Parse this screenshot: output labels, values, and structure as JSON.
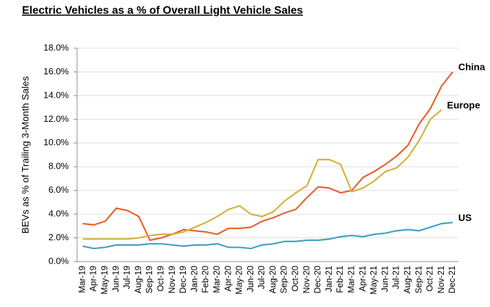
{
  "chart_data": {
    "type": "line",
    "title": "Electric Vehicles as a % of Overall Light Vehicle Sales",
    "y_label": "BEVs as % of Trailing 3-Month Sales",
    "categories": [
      "Mar-19",
      "Apr-19",
      "May-19",
      "Jun-19",
      "Jul-19",
      "Aug-19",
      "Sep-19",
      "Oct-19",
      "Nov-19",
      "Dec-19",
      "Jan-20",
      "Feb-20",
      "Mar-20",
      "Apr-20",
      "May-20",
      "Jun-20",
      "Jul-20",
      "Aug-20",
      "Sep-20",
      "Oct-20",
      "Nov-20",
      "Dec-20",
      "Jan-21",
      "Feb-21",
      "Mar-21",
      "Apr-21",
      "May-21",
      "Jun-21",
      "Jul-21",
      "Aug-21",
      "Sep-21",
      "Oct-21",
      "Nov-21",
      "Dec-21"
    ],
    "series": [
      {
        "name": "China",
        "color": "#e8602a",
        "values": [
          3.2,
          3.1,
          3.4,
          4.5,
          4.3,
          3.8,
          1.8,
          2.0,
          2.3,
          2.7,
          2.6,
          2.5,
          2.3,
          2.8,
          2.8,
          2.9,
          3.4,
          3.7,
          4.1,
          4.4,
          5.4,
          6.3,
          6.2,
          5.8,
          6.0,
          7.1,
          7.6,
          8.2,
          8.9,
          9.8,
          11.6,
          12.9,
          14.8,
          16.0
        ]
      },
      {
        "name": "Europe",
        "color": "#d4b13c",
        "values": [
          1.9,
          1.9,
          1.9,
          1.9,
          1.9,
          2.0,
          2.2,
          2.3,
          2.3,
          2.5,
          2.9,
          3.3,
          3.8,
          4.4,
          4.7,
          4.0,
          3.8,
          4.2,
          5.1,
          5.8,
          6.4,
          8.6,
          8.6,
          8.2,
          5.9,
          6.2,
          6.8,
          7.6,
          7.9,
          8.8,
          10.2,
          12.0,
          12.8,
          null
        ]
      },
      {
        "name": "US",
        "color": "#3fa0c4",
        "values": [
          1.3,
          1.1,
          1.2,
          1.4,
          1.4,
          1.4,
          1.5,
          1.5,
          1.4,
          1.3,
          1.4,
          1.4,
          1.5,
          1.2,
          1.2,
          1.1,
          1.4,
          1.5,
          1.7,
          1.7,
          1.8,
          1.8,
          1.9,
          2.1,
          2.2,
          2.1,
          2.3,
          2.4,
          2.6,
          2.7,
          2.6,
          2.9,
          3.2,
          3.3
        ]
      }
    ],
    "ylim": [
      0,
      18
    ],
    "yticks": [
      {
        "value": 0,
        "label": "0.0%"
      },
      {
        "value": 2,
        "label": "2.0%"
      },
      {
        "value": 4,
        "label": "4.0%"
      },
      {
        "value": 6,
        "label": "6.0%"
      },
      {
        "value": 8,
        "label": "8.0%"
      },
      {
        "value": 10,
        "label": "10.0%"
      },
      {
        "value": 12,
        "label": "12.0%"
      },
      {
        "value": 14,
        "label": "14.0%"
      },
      {
        "value": 16,
        "label": "16.0%"
      },
      {
        "value": 18,
        "label": "18.0%"
      }
    ],
    "grid": true
  }
}
